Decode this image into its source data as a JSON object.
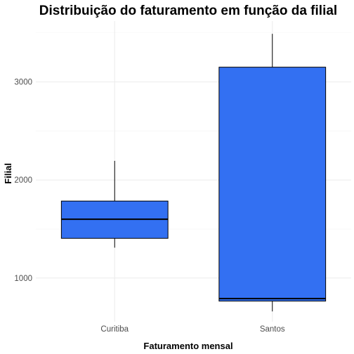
{
  "chart_data": {
    "type": "boxplot",
    "title": "Distribuição do faturamento em função da filial",
    "xlabel": "Faturamento mensal",
    "ylabel": "Filial",
    "categories": [
      "Curitiba",
      "Santos"
    ],
    "boxes": [
      {
        "category": "Curitiba",
        "min": 1310,
        "q1": 1405,
        "median": 1600,
        "q3": 1785,
        "max": 2195
      },
      {
        "category": "Santos",
        "min": 660,
        "q1": 765,
        "median": 790,
        "q3": 3150,
        "max": 3490
      }
    ],
    "yticks": [
      1000,
      2000,
      3000
    ],
    "ylim": [
      555,
      3620
    ],
    "fill_color": "#3370f2",
    "grid": true
  }
}
